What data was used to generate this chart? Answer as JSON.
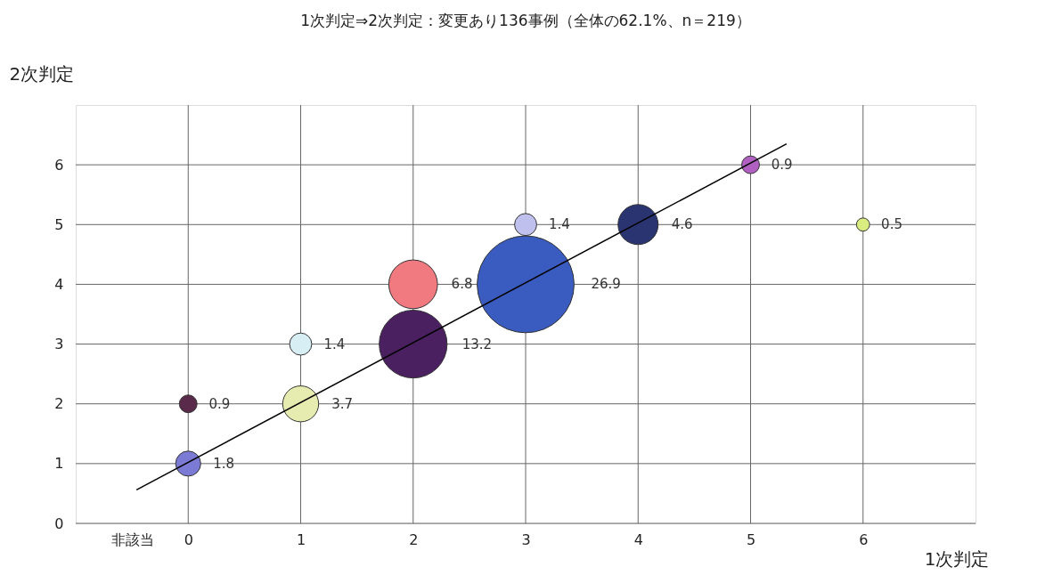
{
  "chart_data": {
    "type": "bubble",
    "title": "1次判定⇒2次判定：変更あり136事例（全体の62.1%、n＝219）",
    "xlabel": "1次判定",
    "ylabel": "2次判定",
    "xlim": [
      -1,
      7
    ],
    "ylim": [
      0,
      7
    ],
    "xticks": [
      {
        "value": -0.5,
        "label": "非該当"
      },
      0,
      1,
      2,
      3,
      4,
      5,
      6
    ],
    "yticks": [
      0,
      1,
      2,
      3,
      4,
      5,
      6
    ],
    "grid": true,
    "series": [
      {
        "x": [
          0,
          0,
          1,
          1,
          2,
          2,
          3,
          3,
          4,
          5,
          6
        ],
        "values": [
          1,
          2,
          2,
          3,
          3,
          4,
          4,
          5,
          5,
          6,
          5
        ],
        "sizes": [
          1.8,
          0.9,
          3.7,
          1.4,
          13.2,
          6.8,
          26.9,
          1.4,
          4.6,
          0.9,
          0.5
        ],
        "value_labels": [
          "1.8",
          "0.9",
          "3.7",
          "1.4",
          "13.2",
          "6.8",
          "26.9",
          "1.4",
          "4.6",
          "0.9",
          "0.5"
        ],
        "colors": [
          "#7b7bd6",
          "#5a2a4a",
          "#e6ebb0",
          "#d8eef5",
          "#4a2060",
          "#f07a80",
          "#3a5cc0",
          "#c0c0ee",
          "#2a3470",
          "#b060c0",
          "#d8ec80"
        ]
      },
      {
        "type": "line",
        "x": [
          -0.46,
          5.32
        ],
        "values": [
          0.56,
          6.35
        ],
        "color": "#000000"
      }
    ]
  }
}
